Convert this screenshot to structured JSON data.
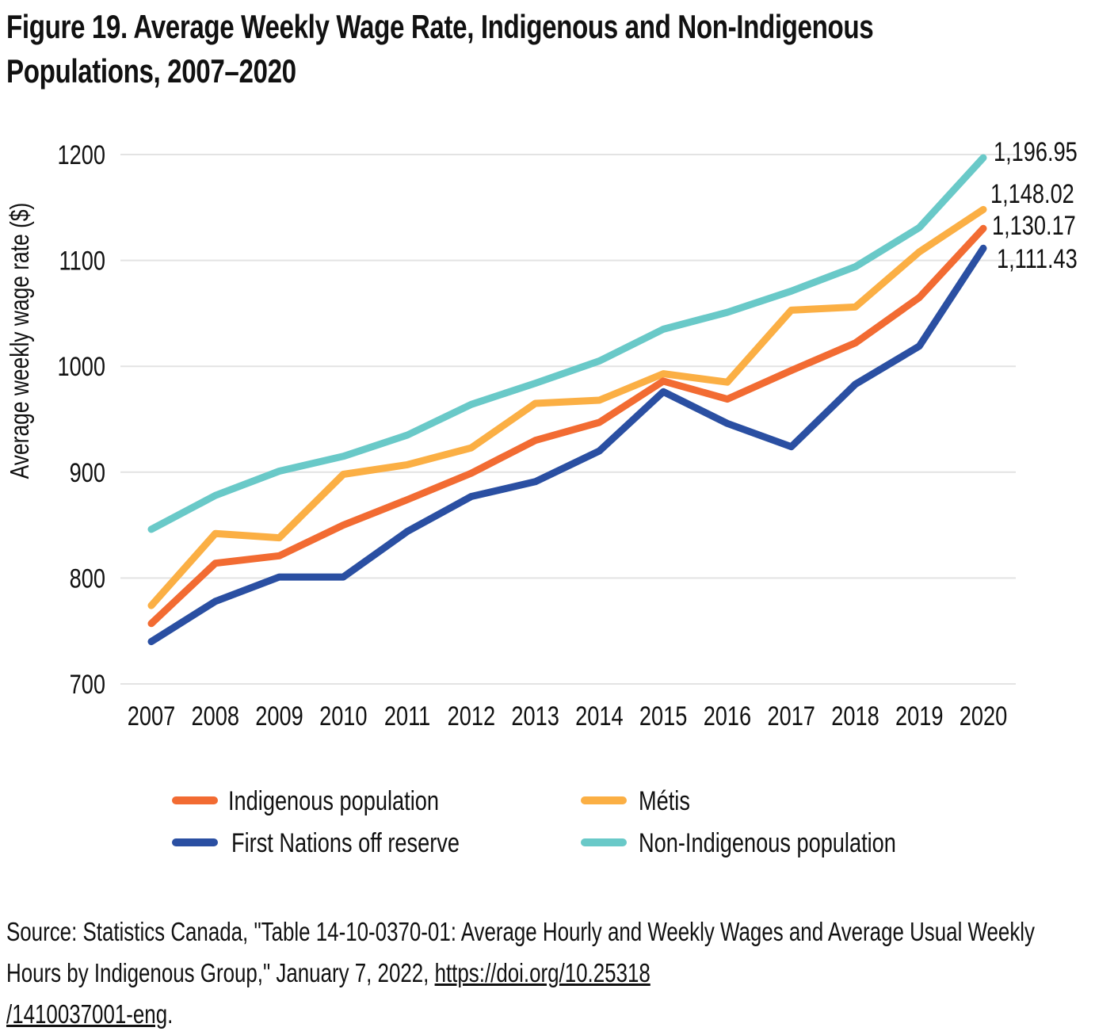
{
  "title_line1": "Figure 19. Average Weekly Wage Rate, Indigenous and Non-Indigenous",
  "title_line2": "Populations, 2007–2020",
  "source": {
    "prefix": "Source: Statistics Canada, \"Table 14-10-0370-01: Average Hourly and Weekly Wages and Average Usual Weekly Hours by Indigenous Group,\" January 7, 2022, ",
    "link_text_1": "https://doi.org/10.25318",
    "link_text_2": "/1410037001-eng",
    "suffix": "."
  },
  "chart_data": {
    "type": "line",
    "title": "Figure 19. Average Weekly Wage Rate, Indigenous and Non-Indigenous Populations, 2007–2020",
    "xlabel": "",
    "ylabel": "Average weekly wage rate ($)",
    "ylim": [
      700,
      1200
    ],
    "yticks": [
      "700",
      "800",
      "900",
      "1000",
      "1100",
      "1200"
    ],
    "grid": true,
    "legend_position": "bottom",
    "categories": [
      "2007",
      "2008",
      "2009",
      "2010",
      "2011",
      "2012",
      "2013",
      "2014",
      "2015",
      "2016",
      "2017",
      "2018",
      "2019",
      "2020"
    ],
    "series": [
      {
        "name": "Indigenous population",
        "color": "#F26B32",
        "values": [
          757,
          814,
          821,
          850,
          874,
          899,
          930,
          947,
          986,
          969,
          996,
          1022,
          1065,
          1130.17
        ],
        "end_label": "1,130.17"
      },
      {
        "name": "Métis",
        "color": "#FBAF44",
        "values": [
          774,
          842,
          838,
          898,
          907,
          923,
          965,
          968,
          993,
          985,
          1053,
          1056,
          1108,
          1148.02
        ],
        "end_label": "1,148.02"
      },
      {
        "name": "First Nations off reserve",
        "color": "#2A4FA2",
        "values": [
          740,
          778,
          801,
          801,
          844,
          877,
          891,
          920,
          976,
          946,
          924,
          983,
          1019,
          1111.43
        ],
        "end_label": "1,111.43"
      },
      {
        "name": "Non-Indigenous population",
        "color": "#69C9C8",
        "values": [
          846,
          878,
          901,
          915,
          935,
          964,
          984,
          1005,
          1035,
          1051,
          1071,
          1094,
          1131,
          1196.95
        ],
        "end_label": "1,196.95"
      }
    ],
    "legend_order": [
      "Indigenous population",
      "Métis",
      "First Nations off reserve",
      "Non-Indigenous population"
    ]
  }
}
